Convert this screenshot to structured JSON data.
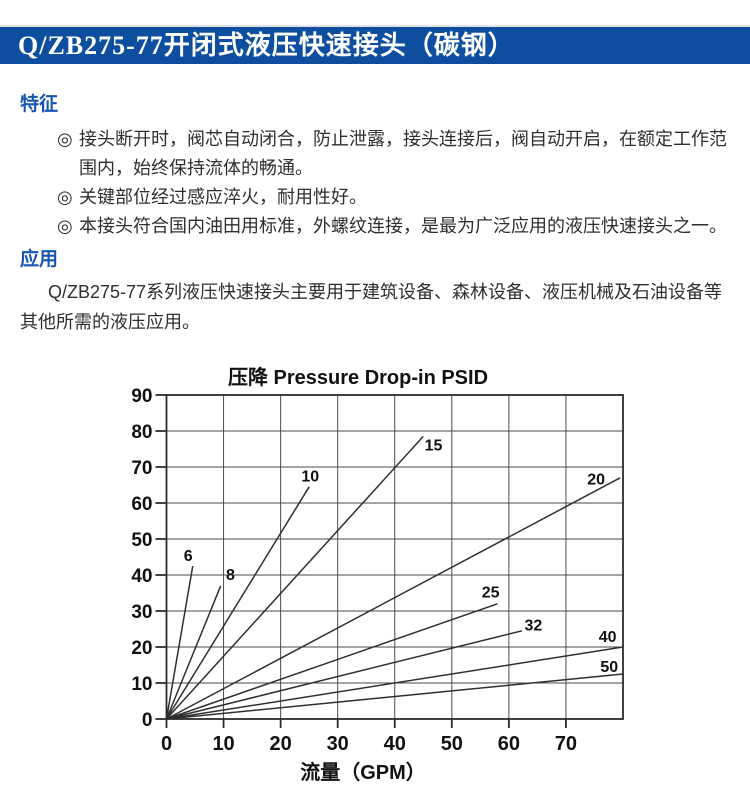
{
  "header": {
    "title": "Q/ZB275-77开闭式液压快速接头（碳钢）",
    "bg_color": "#0d4f9e",
    "text_color": "#ffffff"
  },
  "accent_blue": "#1655b4",
  "sections": {
    "features": {
      "heading": "特征",
      "bullet_char": "◎",
      "items": [
        "接头断开时，阀芯自动闭合，防止泄露，接头连接后，阀自动开启，在额定工作范\n围内，始终保持流体的畅通。",
        "关键部位经过感应淬火，耐用性好。",
        "本接头符合国内油田用标准，外螺纹连接，是最为广泛应用的液压快速接头之一。"
      ]
    },
    "application": {
      "heading": "应用",
      "text": "Q/ZB275-77系列液压快速接头主要用于建筑设备、森林设备、液压机械及石油设备等\n其他所需的液压应用。"
    }
  },
  "chart_data": {
    "type": "line",
    "title": "压降 Pressure Drop-in PSID",
    "xlabel": "流量（GPM）",
    "ylabel": "",
    "xlim": [
      0,
      80
    ],
    "ylim": [
      0,
      90
    ],
    "x_ticks": [
      0,
      10,
      20,
      30,
      40,
      50,
      60,
      70
    ],
    "y_ticks": [
      0,
      10,
      20,
      30,
      40,
      50,
      60,
      70,
      80,
      90
    ],
    "grid": true,
    "legend_position": "inline-labels",
    "series": [
      {
        "name": "6",
        "points": [
          [
            0,
            0
          ],
          [
            4.6,
            42.5
          ]
        ],
        "label_pos": [
          3.8,
          45.3
        ]
      },
      {
        "name": "8",
        "points": [
          [
            0,
            0
          ],
          [
            9.5,
            37
          ]
        ],
        "label_pos": [
          11.2,
          40
        ]
      },
      {
        "name": "10",
        "points": [
          [
            0,
            0
          ],
          [
            25,
            64.5
          ]
        ],
        "label_pos": [
          25.2,
          67.3
        ]
      },
      {
        "name": "15",
        "points": [
          [
            0,
            0
          ],
          [
            45,
            78.5
          ]
        ],
        "label_pos": [
          46.8,
          76
        ]
      },
      {
        "name": "20",
        "points": [
          [
            0,
            0
          ],
          [
            79.5,
            67
          ]
        ],
        "label_pos": [
          75.3,
          66.5
        ]
      },
      {
        "name": "25",
        "points": [
          [
            0,
            0
          ],
          [
            58,
            32
          ]
        ],
        "label_pos": [
          56.8,
          35.2
        ]
      },
      {
        "name": "32",
        "points": [
          [
            0,
            0
          ],
          [
            62.3,
            24.5
          ]
        ],
        "label_pos": [
          64.3,
          26
        ]
      },
      {
        "name": "40",
        "points": [
          [
            0,
            0
          ],
          [
            80,
            20
          ]
        ],
        "label_pos": [
          77.3,
          22.8
        ]
      },
      {
        "name": "50",
        "points": [
          [
            0,
            0
          ],
          [
            80,
            12.5
          ]
        ],
        "label_pos": [
          77.6,
          14.5
        ]
      }
    ]
  }
}
